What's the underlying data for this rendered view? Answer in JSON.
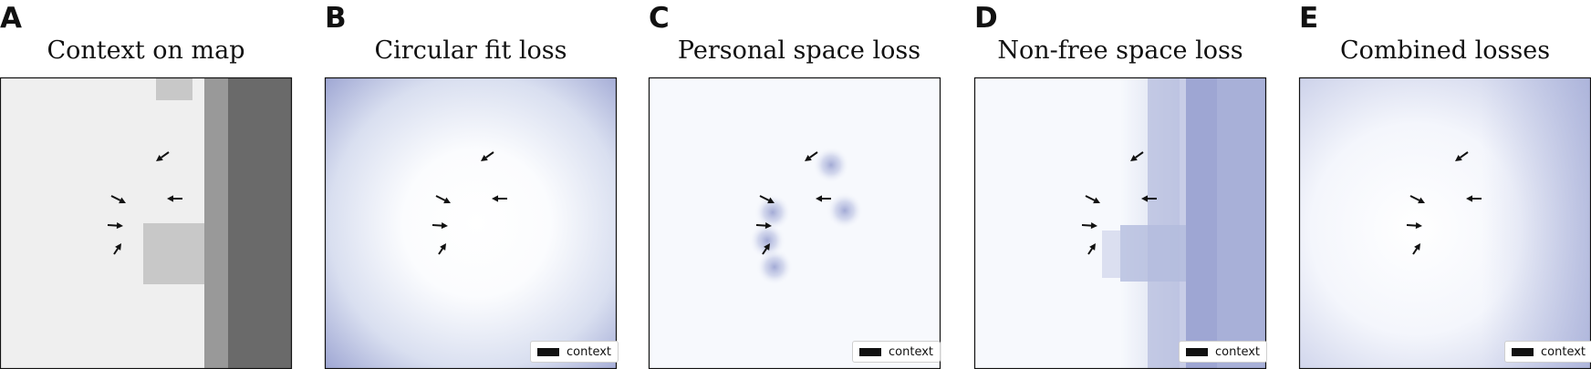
{
  "panels": [
    {
      "letter": "A",
      "title": "Context on map",
      "legend": ""
    },
    {
      "letter": "B",
      "title": "Circular fit loss",
      "legend": "context"
    },
    {
      "letter": "C",
      "title": "Personal space loss",
      "legend": "context"
    },
    {
      "letter": "D",
      "title": "Non-free space loss",
      "legend": "context"
    },
    {
      "letter": "E",
      "title": "Combined losses",
      "legend": "context"
    }
  ],
  "colors": {
    "map_free": "#efefef",
    "map_obstacle_light": "#c8c8c8",
    "map_obstacle_mid": "#999999",
    "map_obstacle_dark": "#6a6a6a",
    "loss_low": "#f7f9fd",
    "loss_high": "#9ea6d3",
    "arrow": "#111111"
  }
}
